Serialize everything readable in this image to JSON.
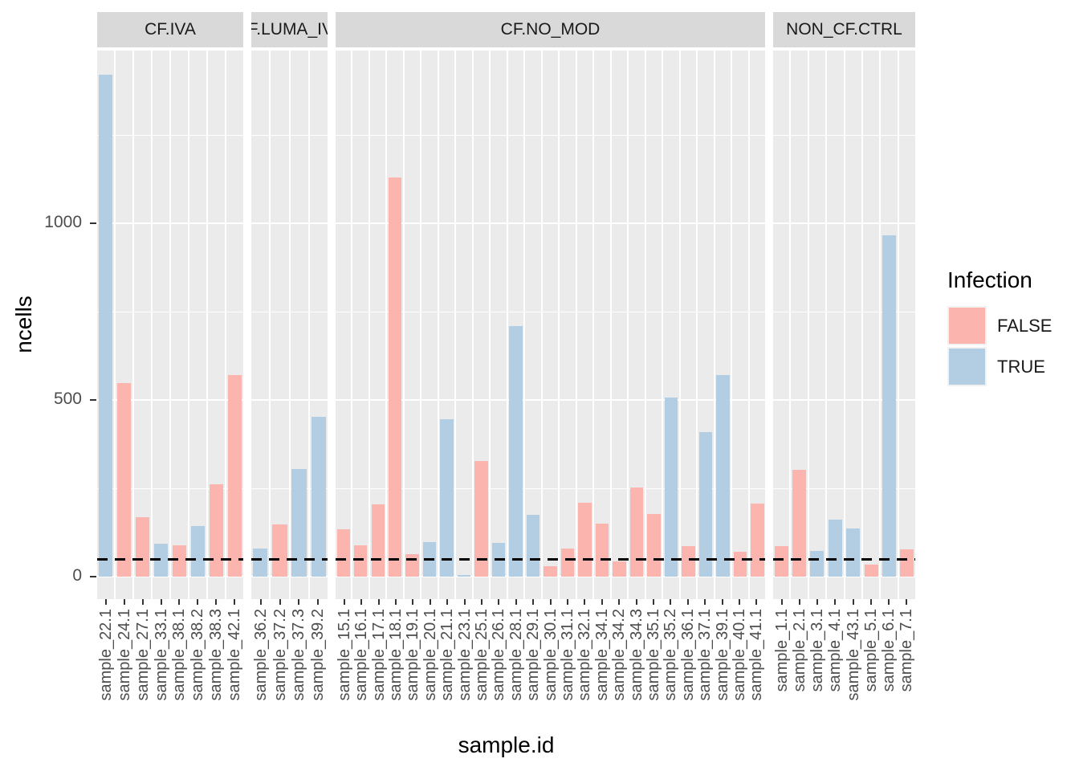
{
  "figure": {
    "y_axis_title": "ncells",
    "x_axis_title": "sample.id"
  },
  "legend": {
    "title": "Infection",
    "entries": [
      {
        "label": "FALSE",
        "color": "#FBB4AE"
      },
      {
        "label": "TRUE",
        "color": "#B3CDE3"
      }
    ]
  },
  "colors": {
    "panel_bg": "#EBEBEB",
    "strip_bg": "#D9D9D9",
    "grid": "#FFFFFF",
    "false_fill": "#FBB4AE",
    "true_fill": "#B3CDE3",
    "axis_text": "#4D4D4D",
    "strip_text": "#1A1A1A",
    "tick": "#333333",
    "hline": "#000000"
  },
  "chart_data": {
    "type": "bar",
    "title": "",
    "xlabel": "sample.id",
    "ylabel": "ncells",
    "ylim": [
      -65,
      1490
    ],
    "yticks": [
      0,
      500,
      1000
    ],
    "minor_gridlines": [
      250,
      750,
      1250
    ],
    "grid": "on",
    "legend_position": "right",
    "legend_title": "Infection",
    "hline": {
      "value": 50,
      "linetype": "dashed",
      "color": "#000000"
    },
    "facets": [
      {
        "label": "CF.IVA",
        "samples": [
          {
            "id": "sample_22.1",
            "value": 1420,
            "infection": "TRUE"
          },
          {
            "id": "sample_24.1",
            "value": 548,
            "infection": "FALSE"
          },
          {
            "id": "sample_27.1",
            "value": 168,
            "infection": "FALSE"
          },
          {
            "id": "sample_33.1",
            "value": 93,
            "infection": "TRUE"
          },
          {
            "id": "sample_38.1",
            "value": 88,
            "infection": "FALSE"
          },
          {
            "id": "sample_38.2",
            "value": 143,
            "infection": "TRUE"
          },
          {
            "id": "sample_38.3",
            "value": 262,
            "infection": "FALSE"
          },
          {
            "id": "sample_42.1",
            "value": 570,
            "infection": "FALSE"
          }
        ]
      },
      {
        "label": "CF.LUMA_IVA",
        "samples": [
          {
            "id": "sample_36.2",
            "value": 80,
            "infection": "TRUE"
          },
          {
            "id": "sample_37.2",
            "value": 148,
            "infection": "FALSE"
          },
          {
            "id": "sample_37.3",
            "value": 305,
            "infection": "TRUE"
          },
          {
            "id": "sample_39.2",
            "value": 452,
            "infection": "TRUE"
          }
        ]
      },
      {
        "label": "CF.NO_MOD",
        "samples": [
          {
            "id": "sample_15.1",
            "value": 134,
            "infection": "FALSE"
          },
          {
            "id": "sample_16.1",
            "value": 89,
            "infection": "FALSE"
          },
          {
            "id": "sample_17.1",
            "value": 205,
            "infection": "FALSE"
          },
          {
            "id": "sample_18.1",
            "value": 1130,
            "infection": "FALSE"
          },
          {
            "id": "sample_19.1",
            "value": 63,
            "infection": "FALSE"
          },
          {
            "id": "sample_20.1",
            "value": 98,
            "infection": "TRUE"
          },
          {
            "id": "sample_21.1",
            "value": 445,
            "infection": "TRUE"
          },
          {
            "id": "sample_23.1",
            "value": 5,
            "infection": "TRUE"
          },
          {
            "id": "sample_25.1",
            "value": 328,
            "infection": "FALSE"
          },
          {
            "id": "sample_26.1",
            "value": 96,
            "infection": "TRUE"
          },
          {
            "id": "sample_28.1",
            "value": 710,
            "infection": "TRUE"
          },
          {
            "id": "sample_29.1",
            "value": 175,
            "infection": "TRUE"
          },
          {
            "id": "sample_30.1",
            "value": 30,
            "infection": "FALSE"
          },
          {
            "id": "sample_31.1",
            "value": 80,
            "infection": "FALSE"
          },
          {
            "id": "sample_32.1",
            "value": 209,
            "infection": "FALSE"
          },
          {
            "id": "sample_34.1",
            "value": 150,
            "infection": "FALSE"
          },
          {
            "id": "sample_34.2",
            "value": 43,
            "infection": "FALSE"
          },
          {
            "id": "sample_34.3",
            "value": 252,
            "infection": "FALSE"
          },
          {
            "id": "sample_35.1",
            "value": 177,
            "infection": "FALSE"
          },
          {
            "id": "sample_35.2",
            "value": 507,
            "infection": "TRUE"
          },
          {
            "id": "sample_36.1",
            "value": 86,
            "infection": "FALSE"
          },
          {
            "id": "sample_37.1",
            "value": 409,
            "infection": "TRUE"
          },
          {
            "id": "sample_39.1",
            "value": 571,
            "infection": "TRUE"
          },
          {
            "id": "sample_40.1",
            "value": 71,
            "infection": "FALSE"
          },
          {
            "id": "sample_41.1",
            "value": 207,
            "infection": "FALSE"
          }
        ]
      },
      {
        "label": "NON_CF.CTRL",
        "samples": [
          {
            "id": "sample_1.1",
            "value": 87,
            "infection": "FALSE"
          },
          {
            "id": "sample_2.1",
            "value": 303,
            "infection": "FALSE"
          },
          {
            "id": "sample_3.1",
            "value": 73,
            "infection": "TRUE"
          },
          {
            "id": "sample_4.1",
            "value": 161,
            "infection": "TRUE"
          },
          {
            "id": "sample_43.1",
            "value": 136,
            "infection": "TRUE"
          },
          {
            "id": "sample_5.1",
            "value": 34,
            "infection": "FALSE"
          },
          {
            "id": "sample_6.1",
            "value": 965,
            "infection": "TRUE"
          },
          {
            "id": "sample_7.1",
            "value": 77,
            "infection": "FALSE"
          }
        ]
      }
    ]
  }
}
